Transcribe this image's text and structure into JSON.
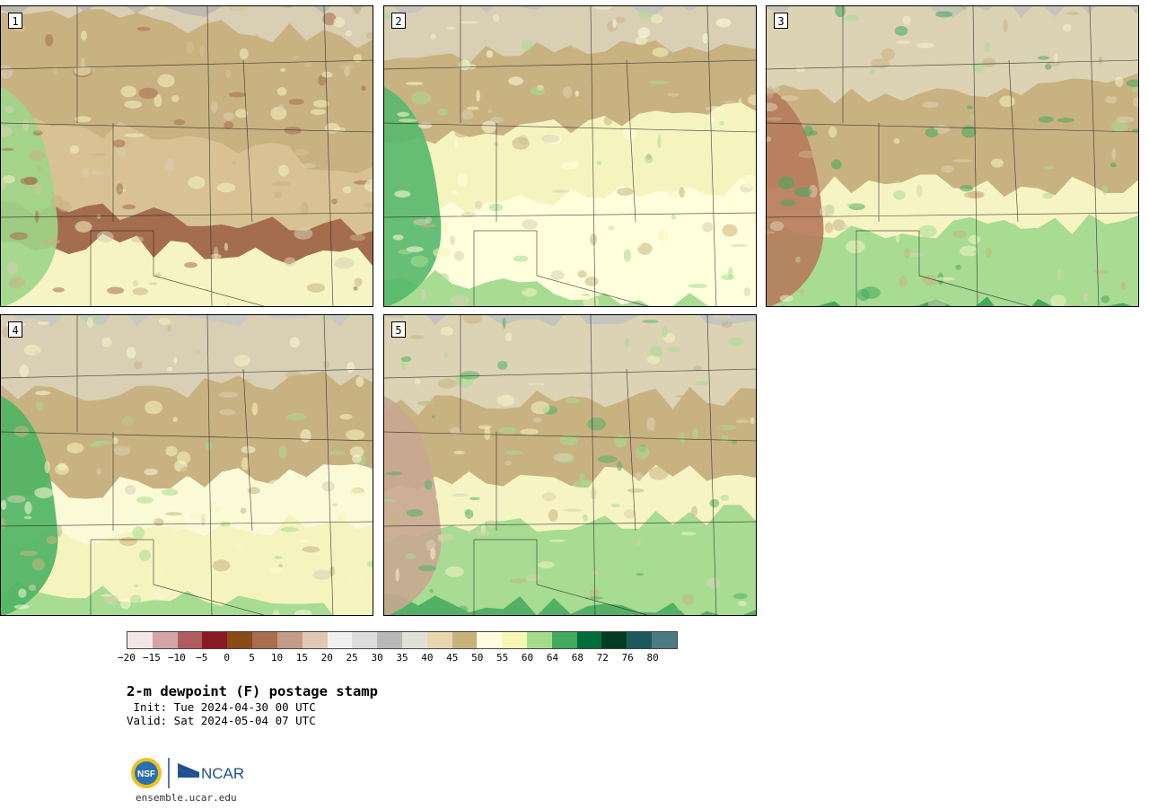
{
  "panels": [
    {
      "label": "1",
      "scheme": [
        "#bfbab0",
        "#d9cfb5",
        "#c9b282",
        "#d8c293",
        "#a46e4e",
        "#f6f4c2",
        "#9fd58a",
        "#3ea95a"
      ]
    },
    {
      "label": "2",
      "scheme": [
        "#c4c4c0",
        "#d9cfb5",
        "#c9b282",
        "#f5f4bf",
        "#ffffdc",
        "#a7dc92",
        "#56b86b",
        "#c9a593"
      ]
    },
    {
      "label": "3",
      "scheme": [
        "#c6c4bd",
        "#dcd2b4",
        "#c9b282",
        "#f6f4c2",
        "#a7dc92",
        "#41aa5c",
        "#b77a5c",
        "#e0d8c4"
      ]
    },
    {
      "label": "4",
      "scheme": [
        "#c8c8c4",
        "#d9cfb5",
        "#c9b282",
        "#fbfad7",
        "#f5f4bf",
        "#a7dc92",
        "#4db463",
        "#b98e76"
      ]
    },
    {
      "label": "5",
      "scheme": [
        "#c4c4c0",
        "#dcd2b4",
        "#c9b282",
        "#f6f4c2",
        "#a7dc92",
        "#52b166",
        "#c8a791",
        "#e5e2d6"
      ]
    }
  ],
  "colorbar": {
    "colors": [
      "#f3e6e6",
      "#d6a4a4",
      "#b05c60",
      "#8a1a24",
      "#8c4a18",
      "#a86f4e",
      "#c49b84",
      "#e2c7b4",
      "#f0f0f0",
      "#dcdcdc",
      "#b8b8b8",
      "#e0e0d4",
      "#e6d7af",
      "#c9b27a",
      "#fffce0",
      "#f5f7b2",
      "#a4dc8c",
      "#41a85c",
      "#006e3a",
      "#033b25",
      "#1a5a5a",
      "#4b7b82"
    ],
    "ticks": [
      "-20",
      "-15",
      "-10",
      "-5",
      "0",
      "5",
      "10",
      "15",
      "20",
      "25",
      "30",
      "35",
      "40",
      "45",
      "50",
      "55",
      "60",
      "64",
      "68",
      "72",
      "76",
      "80"
    ]
  },
  "title": "2-m dewpoint (F) postage stamp",
  "init": " Init: Tue 2024-04-30 00 UTC",
  "valid": "Valid: Sat 2024-05-04 07 UTC",
  "logo": {
    "nsf": "NSF",
    "ncar": "NCAR"
  },
  "site": "ensemble.ucar.edu"
}
